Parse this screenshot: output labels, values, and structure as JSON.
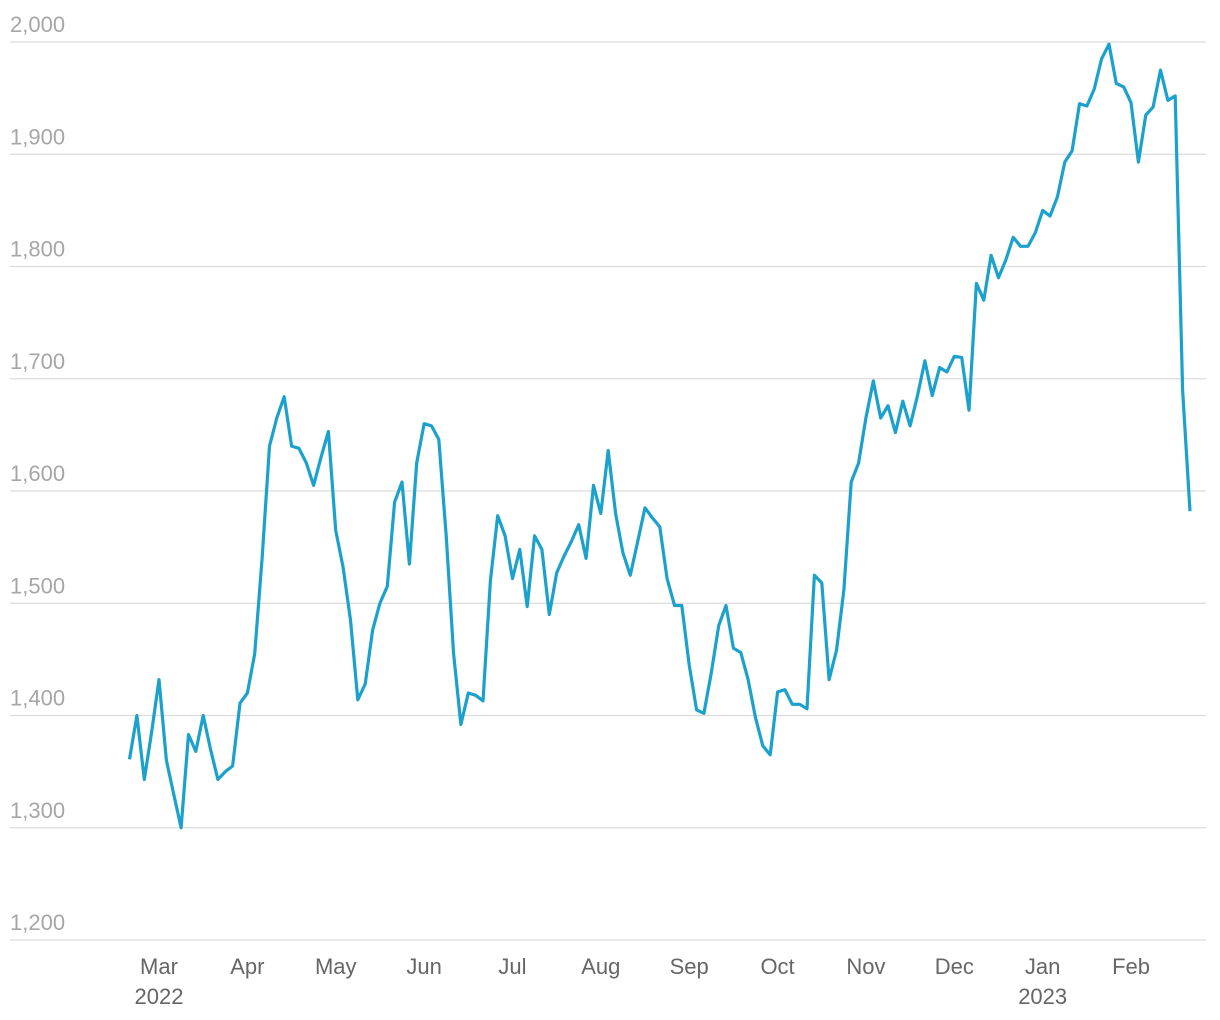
{
  "chart_data": {
    "type": "line",
    "color": "#1ba1cc",
    "grid": true,
    "ylim": [
      1200,
      2000
    ],
    "yticks": [
      {
        "value": 1200,
        "label": "1,200"
      },
      {
        "value": 1300,
        "label": "1,300"
      },
      {
        "value": 1400,
        "label": "1,400"
      },
      {
        "value": 1500,
        "label": "1,500"
      },
      {
        "value": 1600,
        "label": "1,600"
      },
      {
        "value": 1700,
        "label": "1,700"
      },
      {
        "value": 1800,
        "label": "1,800"
      },
      {
        "value": 1900,
        "label": "1,900"
      },
      {
        "value": 2000,
        "label": "2,000"
      }
    ],
    "categories": [
      null,
      null,
      null,
      null,
      "Mar\n2022",
      null,
      null,
      null,
      null,
      null,
      null,
      null,
      null,
      null,
      null,
      null,
      "Apr",
      null,
      null,
      null,
      null,
      null,
      null,
      null,
      null,
      null,
      null,
      null,
      "May",
      null,
      null,
      null,
      null,
      null,
      null,
      null,
      null,
      null,
      null,
      null,
      "Jun",
      null,
      null,
      null,
      null,
      null,
      null,
      null,
      null,
      null,
      null,
      null,
      "Jul",
      null,
      null,
      null,
      null,
      null,
      null,
      null,
      null,
      null,
      null,
      null,
      "Aug",
      null,
      null,
      null,
      null,
      null,
      null,
      null,
      null,
      null,
      null,
      null,
      "Sep",
      null,
      null,
      null,
      null,
      null,
      null,
      null,
      null,
      null,
      null,
      null,
      "Oct",
      null,
      null,
      null,
      null,
      null,
      null,
      null,
      null,
      null,
      null,
      null,
      "Nov",
      null,
      null,
      null,
      null,
      null,
      null,
      null,
      null,
      null,
      null,
      null,
      "Dec",
      null,
      null,
      null,
      null,
      null,
      null,
      null,
      null,
      null,
      null,
      null,
      "Jan\n2023",
      null,
      null,
      null,
      null,
      null,
      null,
      null,
      null,
      null,
      null,
      null,
      "Feb",
      null,
      null,
      null,
      null,
      null,
      null,
      null,
      null
    ],
    "values": [
      1361,
      1400,
      1343,
      1385,
      1432,
      1360,
      1330,
      1300,
      1383,
      1368,
      1400,
      1370,
      1343,
      1350,
      1355,
      1411,
      1420,
      1455,
      1540,
      1640,
      1665,
      1684,
      1640,
      1638,
      1625,
      1605,
      1630,
      1653,
      1565,
      1532,
      1485,
      1414,
      1428,
      1476,
      1500,
      1515,
      1590,
      1608,
      1535,
      1625,
      1660,
      1658,
      1646,
      1560,
      1455,
      1392,
      1420,
      1418,
      1413,
      1520,
      1578,
      1560,
      1522,
      1548,
      1497,
      1560,
      1548,
      1490,
      1527,
      1542,
      1555,
      1570,
      1540,
      1605,
      1580,
      1636,
      1580,
      1545,
      1525,
      1555,
      1585,
      1576,
      1568,
      1522,
      1498,
      1498,
      1445,
      1405,
      1402,
      1438,
      1480,
      1498,
      1460,
      1456,
      1432,
      1398,
      1373,
      1365,
      1421,
      1423,
      1410,
      1410,
      1406,
      1525,
      1518,
      1432,
      1458,
      1512,
      1608,
      1625,
      1665,
      1698,
      1665,
      1676,
      1652,
      1680,
      1658,
      1685,
      1716,
      1685,
      1710,
      1706,
      1720,
      1719,
      1672,
      1785,
      1770,
      1810,
      1790,
      1806,
      1826,
      1818,
      1818,
      1830,
      1850,
      1845,
      1862,
      1893,
      1903,
      1945,
      1943,
      1958,
      1985,
      1998,
      1963,
      1960,
      1946,
      1893,
      1935,
      1942,
      1975,
      1948,
      1952,
      1690,
      1582
    ]
  }
}
